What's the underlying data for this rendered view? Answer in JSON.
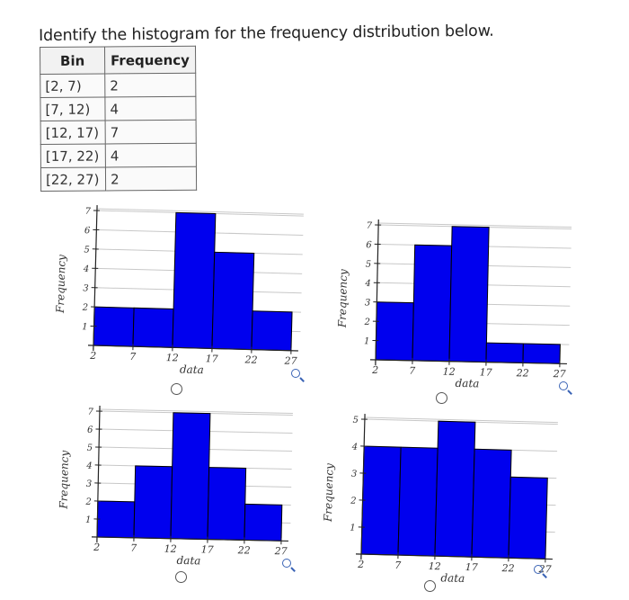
{
  "question": "Identify the histogram for the frequency distribution below.",
  "table": {
    "headers": [
      "Bin",
      "Frequency"
    ],
    "rows": [
      {
        "bin": "[2, 7)",
        "freq": "2"
      },
      {
        "bin": "[7, 12)",
        "freq": "4"
      },
      {
        "bin": "[12, 17)",
        "freq": "7"
      },
      {
        "bin": "[17, 22)",
        "freq": "4"
      },
      {
        "bin": "[22, 27)",
        "freq": "2"
      }
    ]
  },
  "colors": {
    "bar_fill": "#0000ee",
    "bar_stroke": "#000000",
    "grid": "#c8c8c8",
    "accent": "#3a63b5"
  },
  "icons": [
    "radio-button",
    "zoom-icon"
  ],
  "chart_data": [
    {
      "type": "bar",
      "edges": [
        2,
        7,
        12,
        17,
        22,
        27
      ],
      "values": [
        2,
        2,
        7,
        5,
        2
      ],
      "xlabel": "data",
      "ylabel": "Frequency",
      "ylim": [
        0,
        7
      ],
      "xticks": [
        "2",
        "7",
        "12",
        "17",
        "22",
        "27"
      ],
      "yticks": [
        "1",
        "2",
        "3",
        "4",
        "5",
        "6",
        "7"
      ],
      "grid": true
    },
    {
      "type": "bar",
      "edges": [
        2,
        7,
        12,
        17,
        22,
        27
      ],
      "values": [
        3,
        6,
        7,
        1,
        1
      ],
      "xlabel": "data",
      "ylabel": "Frequency",
      "ylim": [
        0,
        7
      ],
      "xticks": [
        "2",
        "7",
        "12",
        "17",
        "22",
        "27"
      ],
      "yticks": [
        "1",
        "2",
        "3",
        "4",
        "5",
        "6",
        "7"
      ],
      "grid": true
    },
    {
      "type": "bar",
      "edges": [
        2,
        7,
        12,
        17,
        22,
        27
      ],
      "values": [
        2,
        4,
        7,
        4,
        2
      ],
      "xlabel": "data",
      "ylabel": "Frequency",
      "ylim": [
        0,
        7
      ],
      "xticks": [
        "2",
        "7",
        "12",
        "17",
        "22",
        "27"
      ],
      "yticks": [
        "1",
        "2",
        "3",
        "4",
        "5",
        "6",
        "7"
      ],
      "grid": true
    },
    {
      "type": "bar",
      "edges": [
        2,
        7,
        12,
        17,
        22,
        27
      ],
      "values": [
        4,
        4,
        5,
        4,
        3
      ],
      "xlabel": "data",
      "ylabel": "Frequency",
      "ylim": [
        0,
        5
      ],
      "xticks": [
        "2",
        "7",
        "12",
        "17",
        "22",
        "27"
      ],
      "yticks": [
        "1",
        "2",
        "3",
        "4",
        "5"
      ],
      "grid": true
    }
  ]
}
